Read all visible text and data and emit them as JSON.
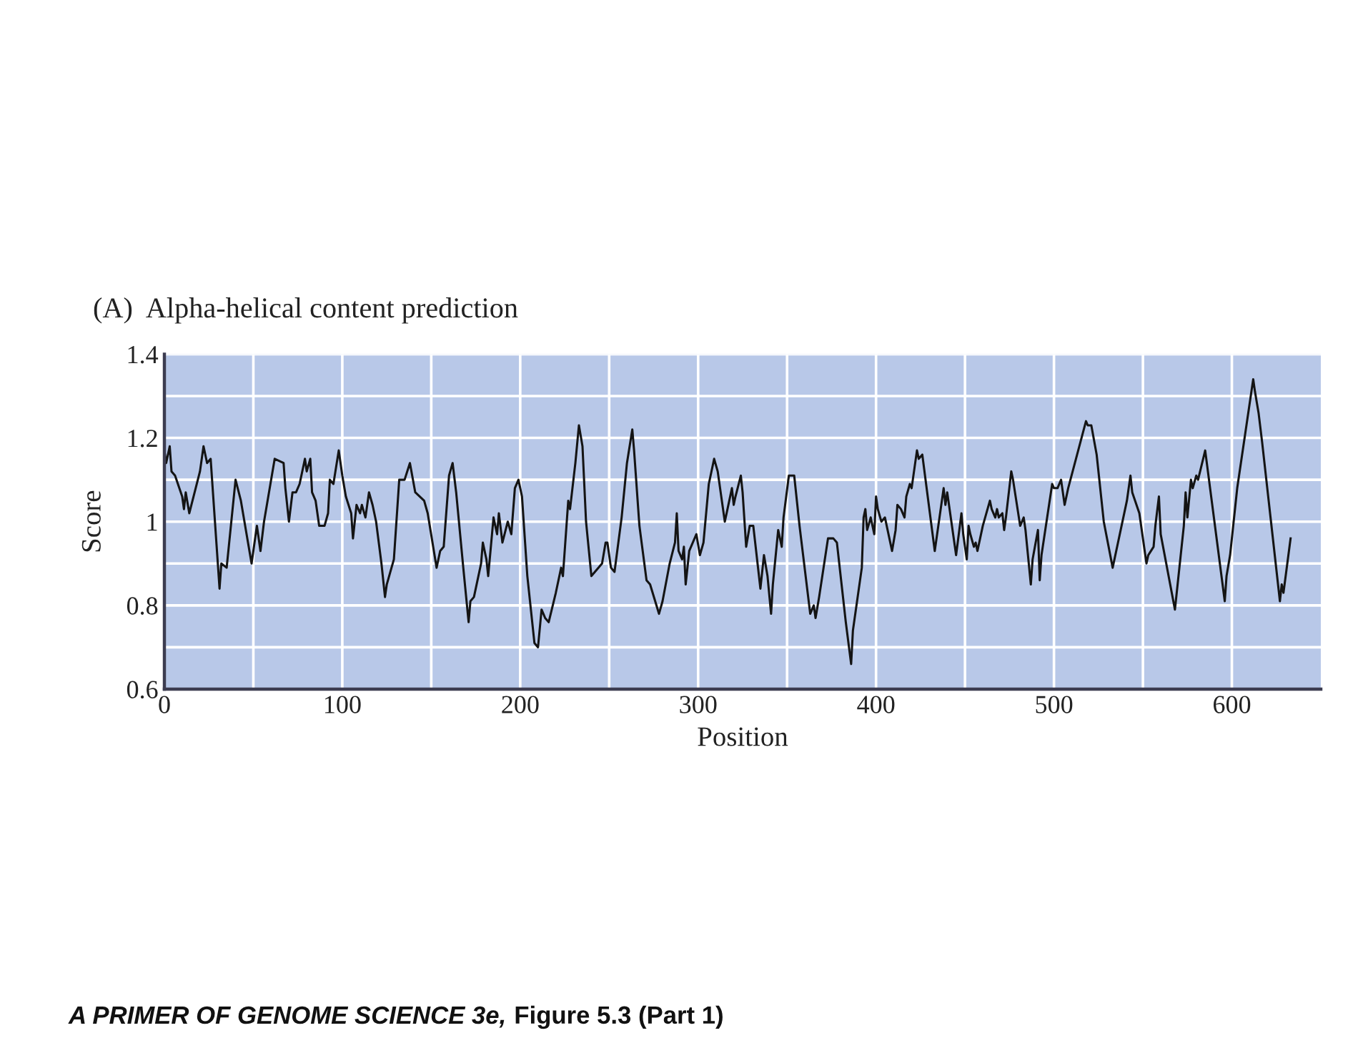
{
  "chart_data": {
    "type": "line",
    "title": "(A)  Alpha-helical content prediction",
    "xlabel": "Position",
    "ylabel": "Score",
    "annotations": [
      "A PRIMER OF GENOME SCIENCE 3e,",
      "Figure 5.3 (Part 1)"
    ],
    "color": "#141414",
    "line_style": "solid",
    "grid": true,
    "xlim": [
      0,
      650
    ],
    "xticks": [
      0,
      {
        "value": 50,
        "label": null
      },
      100,
      {
        "value": 150,
        "label": null
      },
      200,
      {
        "value": 250,
        "label": null
      },
      300,
      {
        "value": 350,
        "label": null
      },
      400,
      {
        "value": 450,
        "label": null
      },
      500,
      {
        "value": 550,
        "label": null
      },
      600
    ],
    "ylim": [
      0.6,
      1.4
    ],
    "yticks": [
      0.6,
      {
        "value": 0.7,
        "label": null
      },
      0.8,
      {
        "value": 0.9,
        "label": null
      },
      1,
      {
        "value": 1.1,
        "label": null
      },
      1.2,
      {
        "value": 1.3,
        "label": null
      },
      1.4
    ],
    "x": [
      0,
      1,
      3,
      4,
      6,
      10,
      11,
      12,
      14,
      20,
      22,
      24,
      26,
      31,
      32,
      35,
      40,
      43,
      49,
      52,
      54,
      56,
      62,
      67,
      68,
      70,
      72,
      74,
      76,
      79,
      80,
      82,
      83,
      85,
      87,
      90,
      92,
      93,
      95,
      98,
      100,
      102,
      105,
      106,
      108,
      110,
      111,
      113,
      115,
      117,
      119,
      122,
      124,
      125,
      129,
      132,
      135,
      138,
      141,
      146,
      148,
      153,
      155,
      157,
      160,
      162,
      164,
      168,
      171,
      172,
      174,
      178,
      179,
      181,
      182,
      185,
      187,
      188,
      190,
      193,
      195,
      197,
      199,
      201,
      204,
      208,
      210,
      212,
      214,
      216,
      220,
      223,
      224,
      227,
      228,
      231,
      233,
      235,
      237,
      240,
      246,
      248,
      249,
      251,
      253,
      257,
      260,
      263,
      264,
      267,
      271,
      273,
      278,
      280,
      284,
      287,
      288,
      289,
      291,
      292,
      293,
      295,
      299,
      301,
      303,
      306,
      309,
      311,
      315,
      319,
      320,
      321,
      324,
      325,
      327,
      329,
      331,
      335,
      337,
      339,
      341,
      342,
      345,
      347,
      348,
      351,
      354,
      357,
      363,
      365,
      366,
      368,
      373,
      376,
      378,
      383,
      386,
      387,
      392,
      393,
      394,
      395,
      397,
      399,
      400,
      401,
      403,
      405,
      409,
      411,
      412,
      414,
      416,
      417,
      419,
      420,
      423,
      424,
      426,
      433,
      438,
      439,
      440,
      445,
      448,
      449,
      451,
      452,
      453,
      455,
      456,
      457,
      460,
      464,
      465,
      467,
      468,
      469,
      471,
      472,
      473,
      476,
      477,
      481,
      483,
      484,
      487,
      488,
      491,
      492,
      493,
      499,
      500,
      502,
      504,
      506,
      508,
      518,
      519,
      521,
      524,
      528,
      533,
      541,
      543,
      544,
      548,
      552,
      553,
      556,
      557,
      559,
      560,
      568,
      573,
      574,
      575,
      577,
      578,
      580,
      581,
      585,
      596,
      597,
      599,
      603,
      612,
      613,
      615,
      617,
      627,
      628,
      629,
      633
    ],
    "values": [
      1.17,
      1.14,
      1.18,
      1.12,
      1.11,
      1.06,
      1.03,
      1.07,
      1.02,
      1.12,
      1.18,
      1.14,
      1.15,
      0.84,
      0.9,
      0.89,
      1.1,
      1.05,
      0.9,
      0.99,
      0.93,
      1.0,
      1.15,
      1.14,
      1.08,
      1.0,
      1.07,
      1.07,
      1.09,
      1.15,
      1.12,
      1.15,
      1.07,
      1.05,
      0.99,
      0.99,
      1.02,
      1.1,
      1.09,
      1.17,
      1.11,
      1.06,
      1.02,
      0.96,
      1.04,
      1.02,
      1.04,
      1.01,
      1.07,
      1.04,
      1.0,
      0.9,
      0.82,
      0.85,
      0.91,
      1.1,
      1.1,
      1.14,
      1.07,
      1.05,
      1.02,
      0.89,
      0.93,
      0.94,
      1.11,
      1.14,
      1.07,
      0.89,
      0.76,
      0.81,
      0.82,
      0.9,
      0.95,
      0.91,
      0.87,
      1.01,
      0.97,
      1.02,
      0.95,
      1.0,
      0.97,
      1.08,
      1.1,
      1.06,
      0.87,
      0.71,
      0.7,
      0.79,
      0.77,
      0.76,
      0.83,
      0.89,
      0.87,
      1.05,
      1.03,
      1.14,
      1.23,
      1.18,
      1.0,
      0.87,
      0.9,
      0.95,
      0.95,
      0.89,
      0.88,
      1.01,
      1.14,
      1.22,
      1.17,
      0.99,
      0.86,
      0.85,
      0.78,
      0.81,
      0.9,
      0.95,
      1.02,
      0.93,
      0.91,
      0.94,
      0.85,
      0.93,
      0.97,
      0.92,
      0.95,
      1.09,
      1.15,
      1.12,
      1.0,
      1.08,
      1.04,
      1.06,
      1.11,
      1.07,
      0.94,
      0.99,
      0.99,
      0.84,
      0.92,
      0.87,
      0.78,
      0.85,
      0.98,
      0.94,
      1.01,
      1.11,
      1.11,
      0.99,
      0.78,
      0.8,
      0.77,
      0.82,
      0.96,
      0.96,
      0.95,
      0.76,
      0.66,
      0.74,
      0.89,
      1.01,
      1.03,
      0.98,
      1.01,
      0.97,
      1.06,
      1.03,
      1.0,
      1.01,
      0.93,
      0.98,
      1.04,
      1.03,
      1.01,
      1.06,
      1.09,
      1.08,
      1.17,
      1.15,
      1.16,
      0.93,
      1.08,
      1.04,
      1.07,
      0.92,
      1.02,
      0.97,
      0.91,
      0.99,
      0.97,
      0.94,
      0.95,
      0.93,
      0.99,
      1.05,
      1.03,
      1.01,
      1.03,
      1.01,
      1.02,
      0.98,
      1.01,
      1.12,
      1.1,
      0.99,
      1.01,
      0.98,
      0.85,
      0.91,
      0.98,
      0.86,
      0.92,
      1.09,
      1.08,
      1.08,
      1.1,
      1.04,
      1.08,
      1.24,
      1.23,
      1.23,
      1.16,
      1.0,
      0.89,
      1.05,
      1.11,
      1.07,
      1.02,
      0.9,
      0.92,
      0.94,
      0.99,
      1.06,
      0.97,
      0.79,
      0.99,
      1.07,
      1.01,
      1.1,
      1.08,
      1.11,
      1.1,
      1.17,
      0.81,
      0.87,
      0.92,
      1.08,
      1.34,
      1.31,
      1.26,
      1.19,
      0.81,
      0.85,
      0.83,
      0.96
    ]
  }
}
